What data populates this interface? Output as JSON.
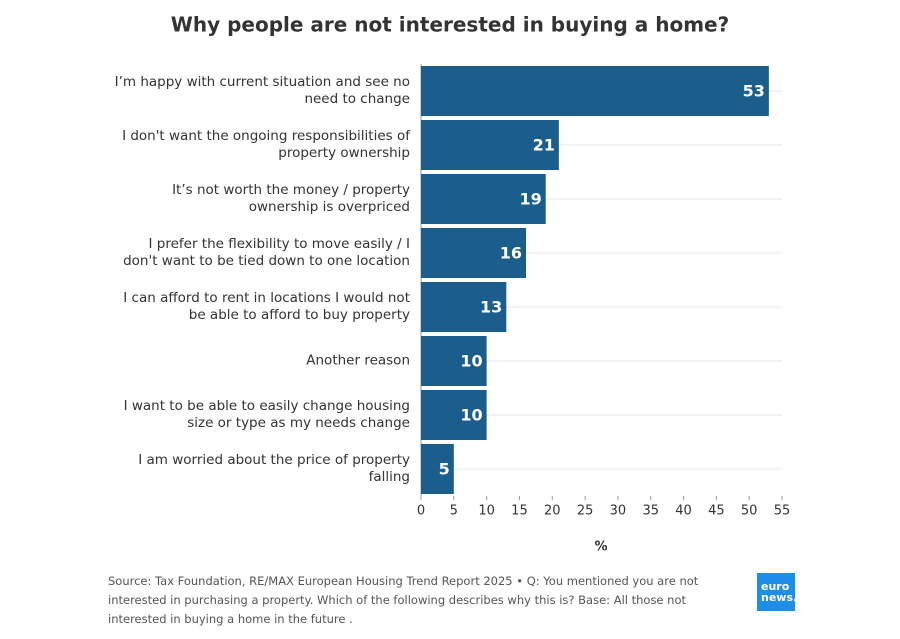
{
  "chart_data": {
    "type": "bar",
    "orientation": "horizontal",
    "title": "Why people are not interested in buying a home?",
    "categories": [
      "I’m happy with current situation and see no need to change",
      "I don't want the ongoing responsibilities of property ownership",
      "It’s not worth the money / property ownership is overpriced",
      "I prefer the flexibility to move easily / I don't want to be tied down to one location",
      "I can afford to rent in locations I would not be able to afford to buy property",
      "Another reason",
      "I want to be able to easily change housing size or type as my needs change",
      "I am worried about the price of property falling"
    ],
    "values": [
      53,
      21,
      19,
      16,
      13,
      10,
      10,
      5
    ],
    "color": "#1b5e8b",
    "xlim": [
      0,
      55
    ],
    "xticks": [
      0,
      5,
      10,
      15,
      20,
      25,
      30,
      35,
      40,
      45,
      50,
      55
    ],
    "xlabel": "%",
    "source": "Source: Tax Foundation, RE/MAX European Housing Trend Report 2025 • Q: You mentioned you are not interested in purchasing a property. Which of the following describes why this is? Base: All those not interested in buying a home in the future .",
    "logo": {
      "line1": "euro",
      "line2": "news."
    }
  }
}
